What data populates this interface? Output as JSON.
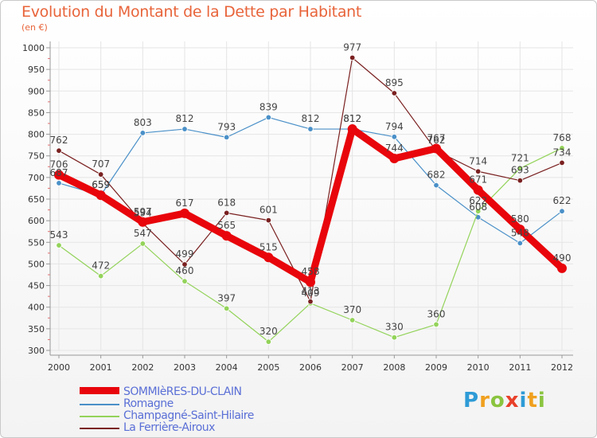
{
  "header": {
    "title": "Evolution du Montant de la Dette par Habitant",
    "subtitle": "(en €)"
  },
  "colors": {
    "title": "#e8643a",
    "legend_text": "#5a6fd6",
    "grid": "#e5e5e5"
  },
  "logo": {
    "letters": [
      "P",
      "r",
      "o",
      "x",
      "i",
      "t",
      "i"
    ],
    "colors": [
      "#2e9bd6",
      "#f0a01e",
      "#8ac43f",
      "#e8402a",
      "#2e9bd6",
      "#f0a01e",
      "#8ac43f"
    ]
  },
  "chart_data": {
    "type": "line",
    "title": "Evolution du Montant de la Dette par Habitant",
    "subtitle": "(en €)",
    "xlabel": "",
    "ylabel": "",
    "x": [
      "2000",
      "2001",
      "2002",
      "2003",
      "2004",
      "2005",
      "2006",
      "2007",
      "2008",
      "2009",
      "2010",
      "2011",
      "2012"
    ],
    "ylim": [
      300,
      1000
    ],
    "yticks": [
      300,
      350,
      400,
      450,
      500,
      550,
      600,
      650,
      700,
      750,
      800,
      850,
      900,
      950,
      1000
    ],
    "grid": true,
    "legend_position": "bottom",
    "series": [
      {
        "name": "SOMMIèRES-DU-CLAIN",
        "color": "#e8050b",
        "thick": true,
        "values": [
          706,
          659,
          597,
          617,
          565,
          515,
          458,
          812,
          744,
          767,
          671,
          580,
          490
        ]
      },
      {
        "name": "Romagne",
        "color": "#4a90c8",
        "thick": false,
        "values": [
          687,
          659,
          803,
          812,
          793,
          839,
          812,
          812,
          794,
          682,
          608,
          548,
          622
        ]
      },
      {
        "name": "Champagné-Saint-Hilaire",
        "color": "#93d35a",
        "thick": false,
        "values": [
          543,
          472,
          547,
          460,
          397,
          320,
          409,
          370,
          330,
          360,
          622,
          721,
          768
        ]
      },
      {
        "name": "La Ferrière-Airoux",
        "color": "#7a2020",
        "thick": false,
        "values": [
          762,
          707,
          594,
          499,
          618,
          601,
          413,
          977,
          895,
          762,
          714,
          693,
          734
        ]
      }
    ]
  }
}
